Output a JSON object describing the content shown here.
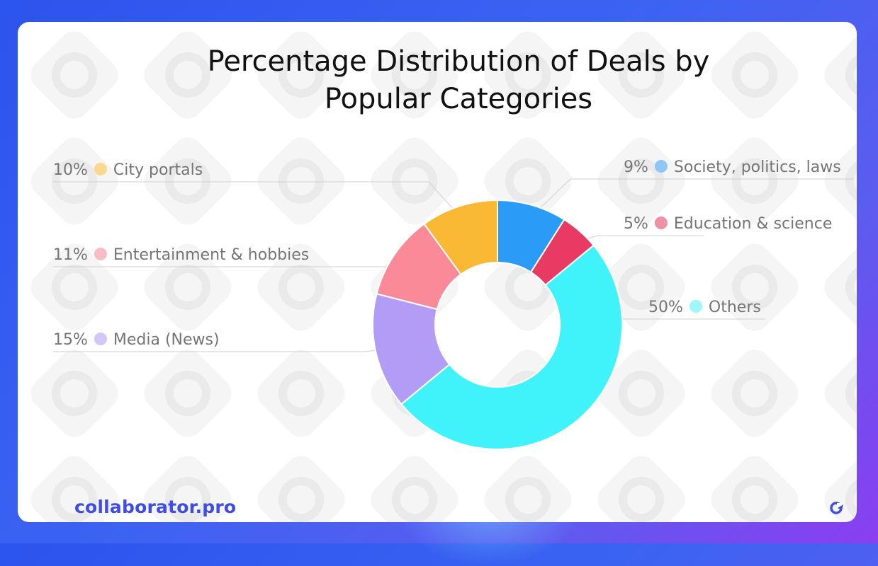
{
  "title_lines": [
    "Percentage Distribution of Deals by",
    "Popular Categories"
  ],
  "brand": {
    "name": "collaborator.pro",
    "color": "#3f4ce6"
  },
  "chart_data": {
    "type": "pie",
    "variant": "donut",
    "title": "Percentage Distribution of Deals by Popular Categories",
    "unit": "%",
    "slices": [
      {
        "label": "Society, politics, laws",
        "value": 9,
        "display": "9%",
        "color": "#2b9bf8",
        "legend_dot": "#8ec7f6"
      },
      {
        "label": "Education & science",
        "value": 5,
        "display": "5%",
        "color": "#e83a62",
        "legend_dot": "#ee91a6"
      },
      {
        "label": "Others",
        "value": 50,
        "display": "50%",
        "color": "#40f3fb",
        "legend_dot": "#9ef7fb"
      },
      {
        "label": "Media (News)",
        "value": 15,
        "display": "15%",
        "color": "#b29cf6",
        "legend_dot": "#d2c7f8"
      },
      {
        "label": "Entertainment & hobbies",
        "value": 11,
        "display": "11%",
        "color": "#fb8a99",
        "legend_dot": "#f8bcc5"
      },
      {
        "label": "City portals",
        "value": 10,
        "display": "10%",
        "color": "#fab935",
        "legend_dot": "#fad88f"
      }
    ]
  }
}
